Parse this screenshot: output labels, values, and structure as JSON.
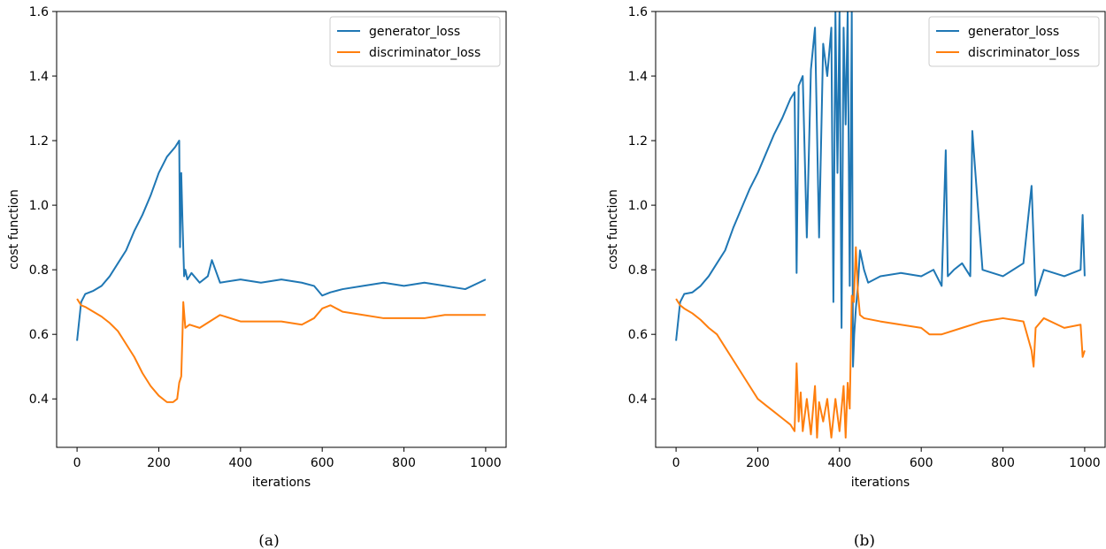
{
  "chart_data": [
    {
      "type": "line",
      "caption": "(a)",
      "xlabel": "iterations",
      "ylabel": "cost function",
      "xlim": [
        -50,
        1050
      ],
      "ylim": [
        0.25,
        1.6
      ],
      "xticks": [
        0,
        200,
        400,
        600,
        800,
        1000
      ],
      "yticks": [
        0.4,
        0.6,
        0.8,
        1.0,
        1.2,
        1.4,
        1.6
      ],
      "xtick_labels": [
        "0",
        "200",
        "400",
        "600",
        "800",
        "1000"
      ],
      "ytick_labels": [
        "0.4",
        "0.6",
        "0.8",
        "1.0",
        "1.2",
        "1.4",
        "1.6"
      ],
      "grid": false,
      "legend_position": "top-right",
      "series": [
        {
          "name": "generator_loss",
          "color": "#1f77b4",
          "x": [
            0,
            10,
            20,
            40,
            60,
            80,
            100,
            120,
            140,
            160,
            180,
            200,
            220,
            240,
            250,
            252,
            255,
            258,
            262,
            265,
            270,
            280,
            300,
            320,
            330,
            350,
            400,
            450,
            500,
            550,
            580,
            600,
            620,
            650,
            700,
            750,
            800,
            850,
            900,
            950,
            1000
          ],
          "y": [
            0.58,
            0.7,
            0.725,
            0.735,
            0.75,
            0.78,
            0.82,
            0.86,
            0.92,
            0.97,
            1.03,
            1.1,
            1.15,
            1.18,
            1.2,
            0.87,
            1.1,
            0.95,
            0.78,
            0.8,
            0.77,
            0.79,
            0.76,
            0.78,
            0.83,
            0.76,
            0.77,
            0.76,
            0.77,
            0.76,
            0.75,
            0.72,
            0.73,
            0.74,
            0.75,
            0.76,
            0.75,
            0.76,
            0.75,
            0.74,
            0.77
          ]
        },
        {
          "name": "discriminator_loss",
          "color": "#ff7f0e",
          "x": [
            0,
            10,
            20,
            40,
            60,
            80,
            100,
            120,
            140,
            160,
            180,
            200,
            220,
            235,
            245,
            250,
            255,
            258,
            260,
            265,
            275,
            300,
            350,
            400,
            450,
            500,
            550,
            580,
            600,
            620,
            650,
            700,
            750,
            800,
            850,
            900,
            950,
            1000
          ],
          "y": [
            0.71,
            0.69,
            0.685,
            0.67,
            0.655,
            0.635,
            0.61,
            0.57,
            0.53,
            0.48,
            0.44,
            0.41,
            0.39,
            0.39,
            0.4,
            0.45,
            0.47,
            0.6,
            0.7,
            0.62,
            0.63,
            0.62,
            0.66,
            0.64,
            0.64,
            0.64,
            0.63,
            0.65,
            0.68,
            0.69,
            0.67,
            0.66,
            0.65,
            0.65,
            0.65,
            0.66,
            0.66,
            0.66
          ]
        }
      ]
    },
    {
      "type": "line",
      "caption": "(b)",
      "xlabel": "iterations",
      "ylabel": "cost function",
      "xlim": [
        -50,
        1050
      ],
      "ylim": [
        0.25,
        1.6
      ],
      "xticks": [
        0,
        200,
        400,
        600,
        800,
        1000
      ],
      "yticks": [
        0.4,
        0.6,
        0.8,
        1.0,
        1.2,
        1.4,
        1.6
      ],
      "xtick_labels": [
        "0",
        "200",
        "400",
        "600",
        "800",
        "1000"
      ],
      "ytick_labels": [
        "0.4",
        "0.6",
        "0.8",
        "1.0",
        "1.2",
        "1.4",
        "1.6"
      ],
      "grid": false,
      "legend_position": "top-right",
      "series": [
        {
          "name": "generator_loss",
          "color": "#1f77b4",
          "x": [
            0,
            10,
            20,
            40,
            60,
            80,
            100,
            120,
            140,
            160,
            180,
            200,
            220,
            240,
            260,
            280,
            290,
            295,
            300,
            310,
            320,
            330,
            340,
            350,
            360,
            370,
            380,
            385,
            390,
            395,
            400,
            405,
            410,
            415,
            420,
            425,
            430,
            433,
            436,
            440,
            445,
            450,
            460,
            470,
            500,
            550,
            600,
            630,
            650,
            660,
            665,
            680,
            700,
            720,
            725,
            750,
            800,
            850,
            870,
            880,
            900,
            950,
            990,
            995,
            1000
          ],
          "y": [
            0.58,
            0.7,
            0.725,
            0.73,
            0.75,
            0.78,
            0.82,
            0.86,
            0.93,
            0.99,
            1.05,
            1.1,
            1.16,
            1.22,
            1.27,
            1.33,
            1.35,
            0.79,
            1.37,
            1.4,
            0.9,
            1.42,
            1.55,
            0.9,
            1.5,
            1.4,
            1.55,
            0.7,
            1.6,
            1.1,
            1.6,
            0.62,
            1.55,
            1.25,
            1.6,
            0.75,
            1.6,
            0.5,
            0.6,
            0.68,
            0.75,
            0.86,
            0.8,
            0.76,
            0.78,
            0.79,
            0.78,
            0.8,
            0.75,
            1.17,
            0.78,
            0.8,
            0.82,
            0.78,
            1.23,
            0.8,
            0.78,
            0.82,
            1.06,
            0.72,
            0.8,
            0.78,
            0.8,
            0.97,
            0.78
          ]
        },
        {
          "name": "discriminator_loss",
          "color": "#ff7f0e",
          "x": [
            0,
            10,
            20,
            40,
            60,
            80,
            100,
            120,
            140,
            160,
            180,
            200,
            220,
            240,
            260,
            280,
            290,
            295,
            300,
            305,
            310,
            320,
            330,
            340,
            345,
            350,
            360,
            370,
            380,
            390,
            400,
            410,
            415,
            420,
            425,
            430,
            435,
            440,
            445,
            450,
            460,
            500,
            550,
            600,
            620,
            650,
            700,
            750,
            800,
            850,
            870,
            875,
            880,
            900,
            950,
            990,
            995,
            1000
          ],
          "y": [
            0.71,
            0.69,
            0.68,
            0.665,
            0.645,
            0.62,
            0.6,
            0.56,
            0.52,
            0.48,
            0.44,
            0.4,
            0.38,
            0.36,
            0.34,
            0.32,
            0.3,
            0.51,
            0.33,
            0.42,
            0.3,
            0.4,
            0.29,
            0.44,
            0.28,
            0.39,
            0.33,
            0.4,
            0.28,
            0.4,
            0.3,
            0.44,
            0.28,
            0.45,
            0.37,
            0.72,
            0.7,
            0.87,
            0.73,
            0.66,
            0.65,
            0.64,
            0.63,
            0.62,
            0.6,
            0.6,
            0.62,
            0.64,
            0.65,
            0.64,
            0.55,
            0.5,
            0.62,
            0.65,
            0.62,
            0.63,
            0.53,
            0.55
          ]
        }
      ]
    }
  ]
}
